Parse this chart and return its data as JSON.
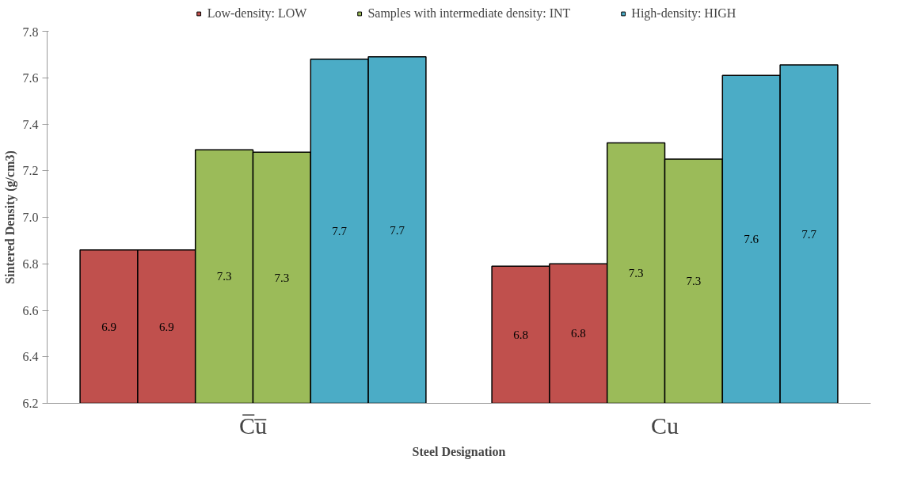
{
  "chart_data": {
    "type": "bar",
    "xlabel": "Steel Designation",
    "ylabel": "Sintered Density (g/cm3)",
    "categories": [
      "C̅u̅",
      "Cu"
    ],
    "series": [
      {
        "name": "Low-density: LOW",
        "color": "#c0504d",
        "values": [
          6.86,
          6.79
        ],
        "value_labels": [
          "6.9",
          "6.8"
        ]
      },
      {
        "color": "#c0504d",
        "values": [
          6.86,
          6.8
        ],
        "value_labels": [
          "6.9",
          "6.8"
        ]
      },
      {
        "name": "Samples with intermediate density: INT",
        "color": "#9bbb59",
        "values": [
          7.29,
          7.32
        ],
        "value_labels": [
          "7.3",
          "7.3"
        ]
      },
      {
        "color": "#9bbb59",
        "values": [
          7.28,
          7.25
        ],
        "value_labels": [
          "7.3",
          "7.3"
        ]
      },
      {
        "name": "High-density: HIGH",
        "color": "#4bacc6",
        "values": [
          7.68,
          7.61
        ],
        "value_labels": [
          "7.7",
          "7.6"
        ]
      },
      {
        "color": "#4bacc6",
        "values": [
          7.69,
          7.655
        ],
        "value_labels": [
          "7.7",
          "7.7"
        ]
      }
    ],
    "ylim": [
      6.2,
      7.8
    ],
    "yticks": [
      {
        "value": 6.2,
        "label": "6.2"
      },
      {
        "value": 6.4,
        "label": "6.4"
      },
      {
        "value": 6.6,
        "label": "6.6"
      },
      {
        "value": 6.8,
        "label": "6.8"
      },
      {
        "value": 7.0,
        "label": "7.0"
      },
      {
        "value": 7.2,
        "label": "7.2"
      },
      {
        "value": 7.4,
        "label": "7.4"
      },
      {
        "value": 7.6,
        "label": "7.6"
      },
      {
        "value": 7.8,
        "label": "7.8"
      }
    ],
    "legend": "top",
    "grid": false
  }
}
